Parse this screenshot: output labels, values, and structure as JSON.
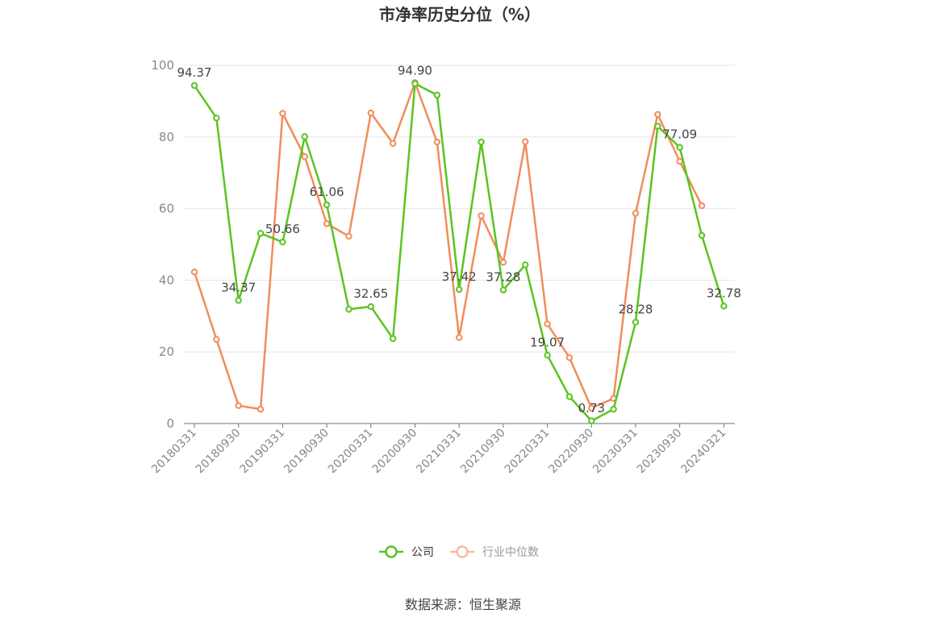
{
  "chart_data": {
    "type": "line",
    "title": "市净率历史分位（%）",
    "xlabel": "",
    "ylabel": "",
    "ylim": [
      0,
      100
    ],
    "yticks": [
      "0",
      "20",
      "40",
      "60",
      "80",
      "100"
    ],
    "x_tick_labels": [
      "20180331",
      "20180930",
      "20190331",
      "20190930",
      "20200331",
      "20200930",
      "20210331",
      "20210930",
      "20220331",
      "20220930",
      "20230331",
      "20230930",
      "20240321"
    ],
    "grid": true,
    "legend_position": "bottom",
    "series": [
      {
        "name": "公司",
        "color": "#5ac421",
        "values": [
          94.37,
          85.3,
          34.37,
          53.1,
          50.66,
          80.1,
          61.06,
          31.9,
          32.65,
          23.7,
          94.9,
          91.7,
          37.42,
          78.6,
          37.28,
          44.3,
          19.07,
          7.5,
          0.73,
          4.0,
          28.28,
          83.0,
          77.09,
          52.5,
          32.78
        ],
        "labels": [
          "94.37",
          "",
          "34.37",
          "",
          "50.66",
          "",
          "61.06",
          "",
          "32.65",
          "",
          "94.90",
          "",
          "37.42",
          "",
          "37.28",
          "",
          "19.07",
          "",
          "0.73",
          "",
          "28.28",
          "",
          "77.09",
          "",
          "32.78"
        ]
      },
      {
        "name": "行业中位数",
        "color": "#f28c5c",
        "values": [
          42.3,
          23.5,
          5.0,
          4.0,
          86.6,
          74.5,
          55.8,
          52.3,
          86.7,
          78.2,
          95.2,
          78.6,
          24.0,
          58.0,
          45.0,
          78.7,
          27.8,
          18.4,
          4.3,
          7.0,
          58.7,
          86.3,
          73.2,
          60.8,
          null
        ]
      }
    ]
  },
  "legend": [
    {
      "label": "公司",
      "color": "#5ac421",
      "text_color": "#333333"
    },
    {
      "label": "行业中位数",
      "color": "#f9b9a0",
      "text_color": "#999999"
    }
  ],
  "source_text": "数据来源：恒生聚源"
}
